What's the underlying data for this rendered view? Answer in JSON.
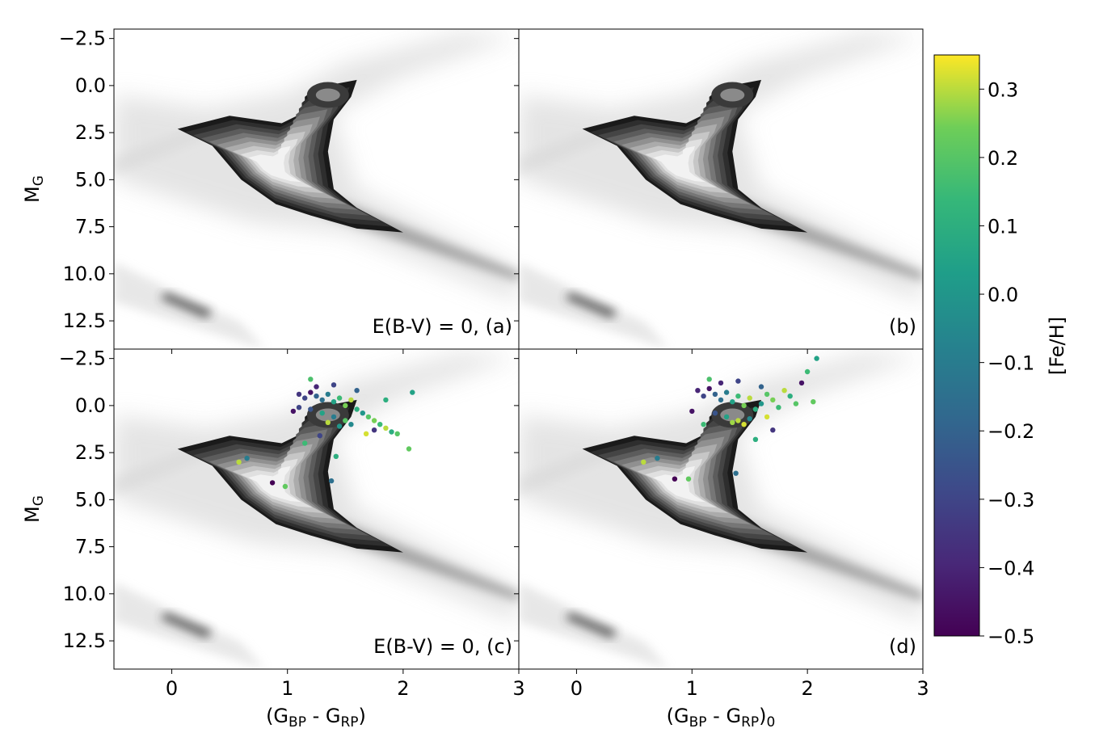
{
  "chart_data": {
    "type": "scatter",
    "layout": "2x2 panels with shared axes and one colorbar",
    "x_range": [
      -0.5,
      3.0
    ],
    "y_range": [
      14.0,
      -3.0
    ],
    "y_inverted": true,
    "x_ticks": [
      "0",
      "1",
      "2",
      "3"
    ],
    "y_ticks": [
      "−2.5",
      "0.0",
      "2.5",
      "5.0",
      "7.5",
      "10.0",
      "12.5"
    ],
    "xlabel_left": "(G",
    "xlabel_left_sub1": "BP",
    "xlabel_left_mid": " - G",
    "xlabel_left_sub2": "RP",
    "xlabel_left_end": ")",
    "xlabel_right_end": ")",
    "xlabel_right_sub0": "0",
    "ylabel_main": "M",
    "ylabel_sub": "G",
    "panels": [
      {
        "id": "a",
        "label": "E(B-V) = 0, (a)",
        "has_stars": false
      },
      {
        "id": "b",
        "label": "(b)",
        "has_stars": false
      },
      {
        "id": "c",
        "label": "E(B-V) = 0, (c)",
        "has_stars": true
      },
      {
        "id": "d",
        "label": "(d)",
        "has_stars": true
      }
    ],
    "density_background": "grayscale filled contours of field-star density (CMD)",
    "colorbar": {
      "label": "[Fe/H]",
      "range": [
        -0.5,
        0.35
      ],
      "ticks": [
        "0.3",
        "0.2",
        "0.1",
        "0.0",
        "−0.1",
        "−0.2",
        "−0.3",
        "−0.4",
        "−0.5"
      ],
      "tick_values": [
        0.3,
        0.2,
        0.1,
        0.0,
        -0.1,
        -0.2,
        -0.3,
        -0.4,
        -0.5
      ],
      "colormap": "viridis"
    },
    "stars_c": [
      {
        "x": 1.1,
        "y": -0.6,
        "feh": -0.35
      },
      {
        "x": 1.15,
        "y": -0.4,
        "feh": -0.3
      },
      {
        "x": 1.2,
        "y": -0.7,
        "feh": -0.45
      },
      {
        "x": 1.25,
        "y": -0.5,
        "feh": -0.2
      },
      {
        "x": 1.3,
        "y": -0.3,
        "feh": -0.15
      },
      {
        "x": 1.35,
        "y": -0.6,
        "feh": -0.1
      },
      {
        "x": 1.4,
        "y": -0.2,
        "feh": 0.05
      },
      {
        "x": 1.45,
        "y": -0.4,
        "feh": 0.15
      },
      {
        "x": 1.5,
        "y": 0.0,
        "feh": 0.25
      },
      {
        "x": 1.55,
        "y": -0.3,
        "feh": 0.3
      },
      {
        "x": 1.6,
        "y": 0.2,
        "feh": 0.1
      },
      {
        "x": 1.65,
        "y": 0.4,
        "feh": 0.0
      },
      {
        "x": 1.7,
        "y": 0.6,
        "feh": 0.2
      },
      {
        "x": 1.75,
        "y": 0.8,
        "feh": 0.25
      },
      {
        "x": 1.8,
        "y": 1.0,
        "feh": 0.15
      },
      {
        "x": 1.85,
        "y": 1.2,
        "feh": 0.3
      },
      {
        "x": 1.9,
        "y": 1.4,
        "feh": 0.1
      },
      {
        "x": 1.95,
        "y": 1.5,
        "feh": 0.2
      },
      {
        "x": 1.2,
        "y": 0.2,
        "feh": -0.25
      },
      {
        "x": 1.3,
        "y": 0.4,
        "feh": 0.05
      },
      {
        "x": 1.4,
        "y": 0.6,
        "feh": -0.1
      },
      {
        "x": 1.5,
        "y": 0.8,
        "feh": 0.2
      },
      {
        "x": 1.55,
        "y": 1.0,
        "feh": -0.05
      },
      {
        "x": 1.35,
        "y": 0.9,
        "feh": 0.3
      },
      {
        "x": 1.45,
        "y": 1.1,
        "feh": 0.0
      },
      {
        "x": 1.25,
        "y": -1.0,
        "feh": -0.4
      },
      {
        "x": 1.4,
        "y": -1.1,
        "feh": -0.3
      },
      {
        "x": 1.2,
        "y": -1.4,
        "feh": 0.18
      },
      {
        "x": 1.6,
        "y": -0.8,
        "feh": -0.2
      },
      {
        "x": 2.05,
        "y": 2.3,
        "feh": 0.22
      },
      {
        "x": 2.08,
        "y": -0.7,
        "feh": 0.05
      },
      {
        "x": 1.85,
        "y": -0.3,
        "feh": 0.1
      },
      {
        "x": 1.05,
        "y": 0.3,
        "feh": -0.45
      },
      {
        "x": 1.1,
        "y": 0.1,
        "feh": -0.3
      },
      {
        "x": 1.42,
        "y": 2.7,
        "feh": 0.1
      },
      {
        "x": 1.28,
        "y": 1.6,
        "feh": -0.3
      },
      {
        "x": 1.38,
        "y": 4.0,
        "feh": -0.15
      },
      {
        "x": 0.87,
        "y": 4.1,
        "feh": -0.5
      },
      {
        "x": 0.98,
        "y": 4.3,
        "feh": 0.22
      },
      {
        "x": 0.58,
        "y": 3.0,
        "feh": 0.3
      },
      {
        "x": 0.65,
        "y": 2.8,
        "feh": -0.1
      },
      {
        "x": 1.15,
        "y": 2.0,
        "feh": 0.15
      },
      {
        "x": 1.75,
        "y": 1.3,
        "feh": -0.35
      },
      {
        "x": 1.68,
        "y": 1.5,
        "feh": 0.32
      }
    ],
    "stars_d": [
      {
        "x": 1.05,
        "y": -0.8,
        "feh": -0.4
      },
      {
        "x": 1.1,
        "y": -0.5,
        "feh": -0.3
      },
      {
        "x": 1.15,
        "y": -0.9,
        "feh": -0.45
      },
      {
        "x": 1.2,
        "y": -0.6,
        "feh": -0.2
      },
      {
        "x": 1.25,
        "y": -0.3,
        "feh": -0.15
      },
      {
        "x": 1.3,
        "y": -0.7,
        "feh": -0.1
      },
      {
        "x": 1.35,
        "y": -0.2,
        "feh": 0.05
      },
      {
        "x": 1.4,
        "y": -0.5,
        "feh": 0.15
      },
      {
        "x": 1.45,
        "y": 0.0,
        "feh": 0.25
      },
      {
        "x": 1.5,
        "y": -0.4,
        "feh": 0.3
      },
      {
        "x": 1.55,
        "y": 0.2,
        "feh": 0.1
      },
      {
        "x": 1.6,
        "y": -0.1,
        "feh": 0.0
      },
      {
        "x": 1.65,
        "y": -0.6,
        "feh": 0.2
      },
      {
        "x": 1.7,
        "y": -0.3,
        "feh": 0.25
      },
      {
        "x": 1.75,
        "y": 0.1,
        "feh": 0.15
      },
      {
        "x": 1.8,
        "y": -0.8,
        "feh": 0.3
      },
      {
        "x": 1.85,
        "y": -0.5,
        "feh": 0.1
      },
      {
        "x": 1.9,
        "y": -0.1,
        "feh": 0.2
      },
      {
        "x": 1.2,
        "y": 0.4,
        "feh": -0.25
      },
      {
        "x": 1.3,
        "y": 0.6,
        "feh": 0.05
      },
      {
        "x": 1.4,
        "y": 0.8,
        "feh": 0.3
      },
      {
        "x": 1.45,
        "y": 1.0,
        "feh": 0.32
      },
      {
        "x": 1.5,
        "y": 0.7,
        "feh": -0.05
      },
      {
        "x": 1.35,
        "y": 0.9,
        "feh": 0.28
      },
      {
        "x": 1.25,
        "y": -1.2,
        "feh": -0.4
      },
      {
        "x": 1.4,
        "y": -1.3,
        "feh": -0.3
      },
      {
        "x": 1.15,
        "y": -1.4,
        "feh": 0.18
      },
      {
        "x": 1.6,
        "y": -1.0,
        "feh": -0.2
      },
      {
        "x": 2.08,
        "y": -2.5,
        "feh": 0.05
      },
      {
        "x": 2.0,
        "y": -1.8,
        "feh": 0.15
      },
      {
        "x": 1.95,
        "y": -1.2,
        "feh": -0.45
      },
      {
        "x": 2.05,
        "y": -0.2,
        "feh": 0.22
      },
      {
        "x": 1.0,
        "y": 0.3,
        "feh": -0.45
      },
      {
        "x": 1.55,
        "y": 1.8,
        "feh": 0.1
      },
      {
        "x": 1.38,
        "y": 3.6,
        "feh": -0.15
      },
      {
        "x": 0.85,
        "y": 3.9,
        "feh": -0.5
      },
      {
        "x": 0.97,
        "y": 3.9,
        "feh": 0.22
      },
      {
        "x": 0.58,
        "y": 3.0,
        "feh": 0.3
      },
      {
        "x": 0.7,
        "y": 2.8,
        "feh": -0.1
      },
      {
        "x": 1.1,
        "y": 1.0,
        "feh": 0.15
      },
      {
        "x": 1.7,
        "y": 1.3,
        "feh": -0.35
      },
      {
        "x": 1.65,
        "y": 0.6,
        "feh": 0.32
      }
    ]
  }
}
